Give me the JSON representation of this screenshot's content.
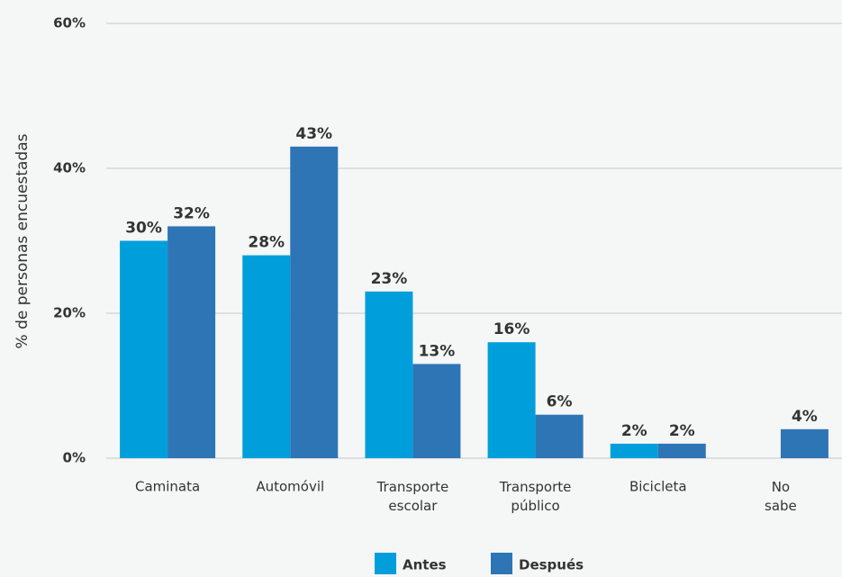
{
  "chart_data": {
    "type": "bar",
    "y_label": "% de personas encuestadas",
    "categories": [
      "Caminata",
      "Automóvil",
      "Transporte escolar",
      "Transporte público",
      "Bicicleta",
      "No sabe"
    ],
    "series": [
      {
        "name": "Antes",
        "color": "#009fdb",
        "values": [
          30,
          28,
          23,
          16,
          2,
          null
        ],
        "value_labels": [
          "30%",
          "28%",
          "23%",
          "16%",
          "2%",
          null
        ]
      },
      {
        "name": "Después",
        "color": "#2e75b6",
        "values": [
          32,
          43,
          13,
          6,
          2,
          4
        ],
        "value_labels": [
          "32%",
          "43%",
          "13%",
          "6%",
          "2%",
          "4%"
        ]
      }
    ],
    "ylim": [
      0,
      60
    ],
    "yticks": [
      {
        "value": 0,
        "label": "0%"
      },
      {
        "value": 20,
        "label": "20%"
      },
      {
        "value": 40,
        "label": "40%"
      },
      {
        "value": 60,
        "label": "60%"
      }
    ],
    "grid": true,
    "legend": "bottom"
  }
}
